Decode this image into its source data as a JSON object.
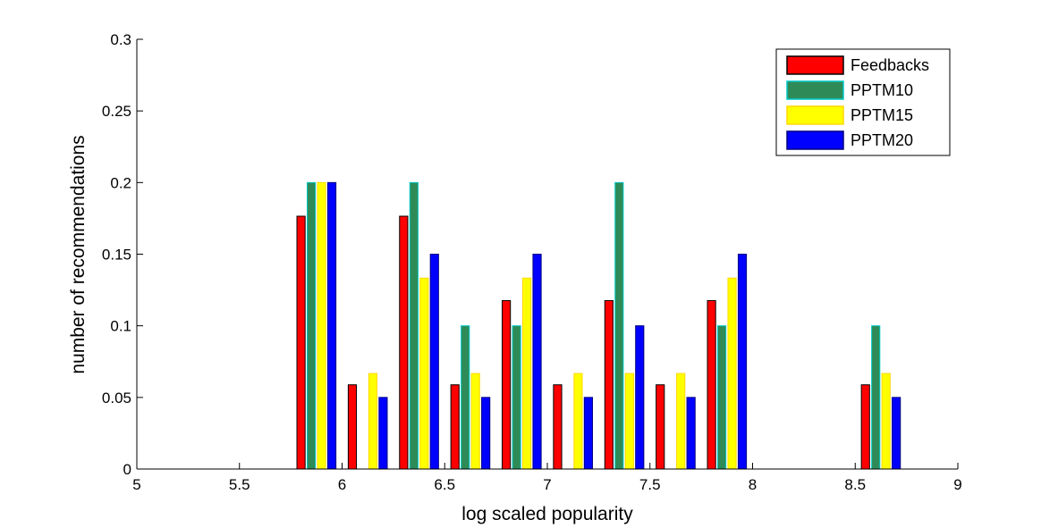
{
  "chart_data": {
    "type": "bar",
    "xlabel": "log scaled popularity",
    "ylabel": "number of recommendations",
    "xlim": [
      5,
      9
    ],
    "ylim": [
      0,
      0.3
    ],
    "xticks": [
      "5",
      "5.5",
      "6",
      "6.5",
      "7",
      "7.5",
      "8",
      "8.5",
      "9"
    ],
    "yticks": [
      "0",
      "0.05",
      "0.1",
      "0.15",
      "0.2",
      "0.25",
      "0.3"
    ],
    "bin_centers": [
      5.125,
      5.375,
      5.625,
      5.875,
      6.125,
      6.375,
      6.625,
      6.875,
      7.125,
      7.375,
      7.625,
      7.875,
      8.125,
      8.375,
      8.625,
      8.875
    ],
    "legend_position": "top-right",
    "series": [
      {
        "name": "Feedbacks",
        "color": "#ff0000",
        "edge": "#000000",
        "values": [
          0,
          0,
          0,
          0.1765,
          0.0588,
          0.1765,
          0.0588,
          0.1176,
          0.0588,
          0.1176,
          0.0588,
          0.1176,
          0,
          0,
          0.0588,
          0
        ]
      },
      {
        "name": "PPTM10",
        "color": "#2e8b57",
        "edge": "#00c8c8",
        "values": [
          0,
          0,
          0,
          0.2,
          0,
          0.2,
          0.1,
          0.1,
          0,
          0.2,
          0,
          0.1,
          0,
          0,
          0.1,
          0
        ]
      },
      {
        "name": "PPTM15",
        "color": "#ffff00",
        "edge": "#ffd700",
        "values": [
          0,
          0,
          0,
          0.2,
          0.0667,
          0.1333,
          0.0667,
          0.1333,
          0.0667,
          0.0667,
          0.0667,
          0.1333,
          0,
          0,
          0.0667,
          0
        ]
      },
      {
        "name": "PPTM20",
        "color": "#0000ff",
        "edge": "#000080",
        "values": [
          0,
          0,
          0,
          0.2,
          0.05,
          0.15,
          0.05,
          0.15,
          0.05,
          0.1,
          0.05,
          0.15,
          0,
          0,
          0.05,
          0
        ]
      }
    ]
  }
}
